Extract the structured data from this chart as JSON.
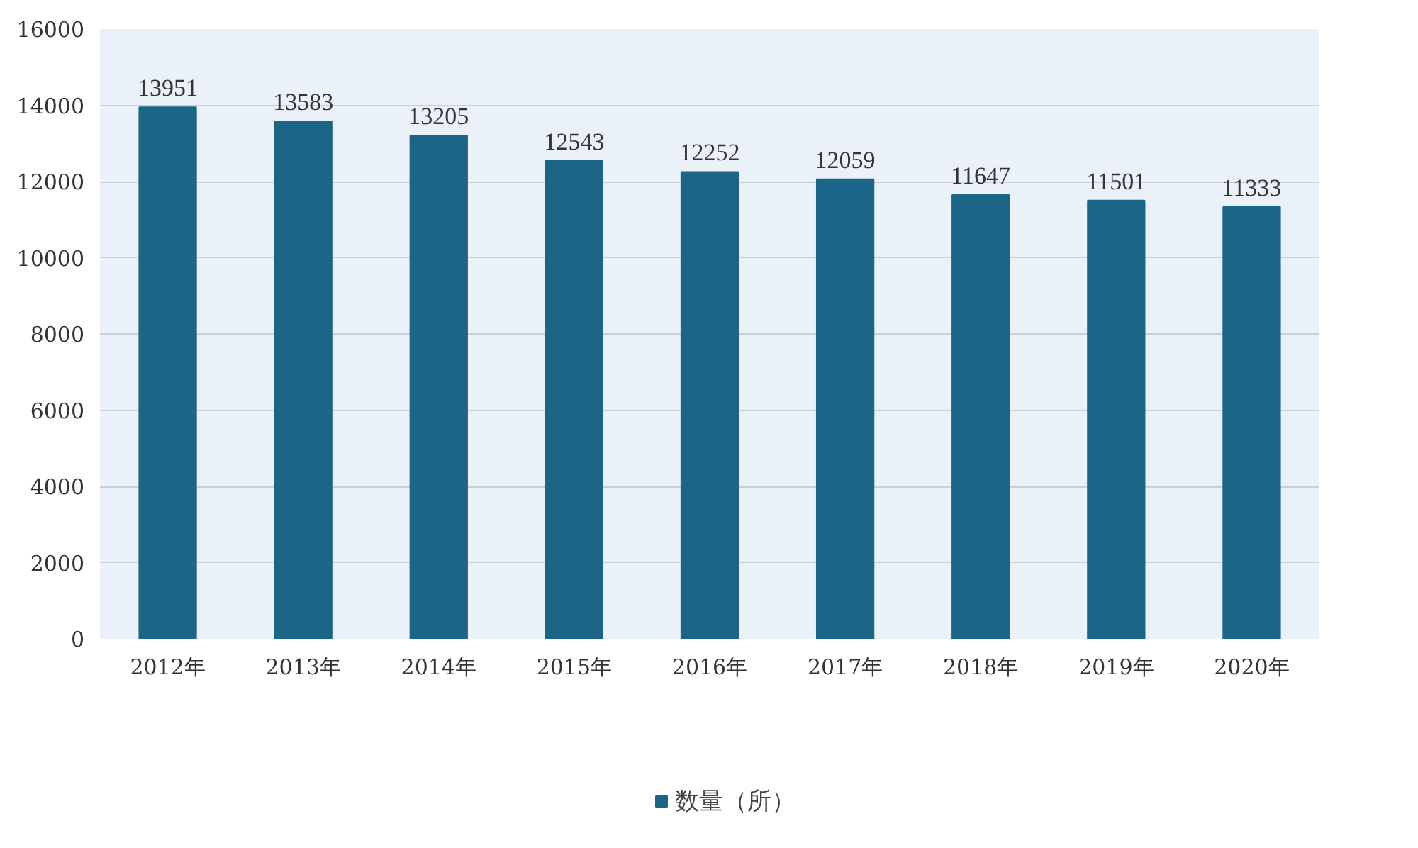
{
  "chart_data": {
    "type": "bar",
    "categories": [
      "2012年",
      "2013年",
      "2014年",
      "2015年",
      "2016年",
      "2017年",
      "2018年",
      "2019年",
      "2020年"
    ],
    "series": [
      {
        "name": "数量（所）",
        "color": "#1b6587",
        "values": [
          13951,
          13583,
          13205,
          12543,
          12252,
          12059,
          11647,
          11501,
          11333
        ]
      }
    ],
    "ylim": [
      0,
      16000
    ],
    "yticks": [
      0,
      2000,
      4000,
      6000,
      8000,
      10000,
      12000,
      14000,
      16000
    ],
    "grid": "y",
    "legend": "bottom",
    "data_labels": true
  }
}
